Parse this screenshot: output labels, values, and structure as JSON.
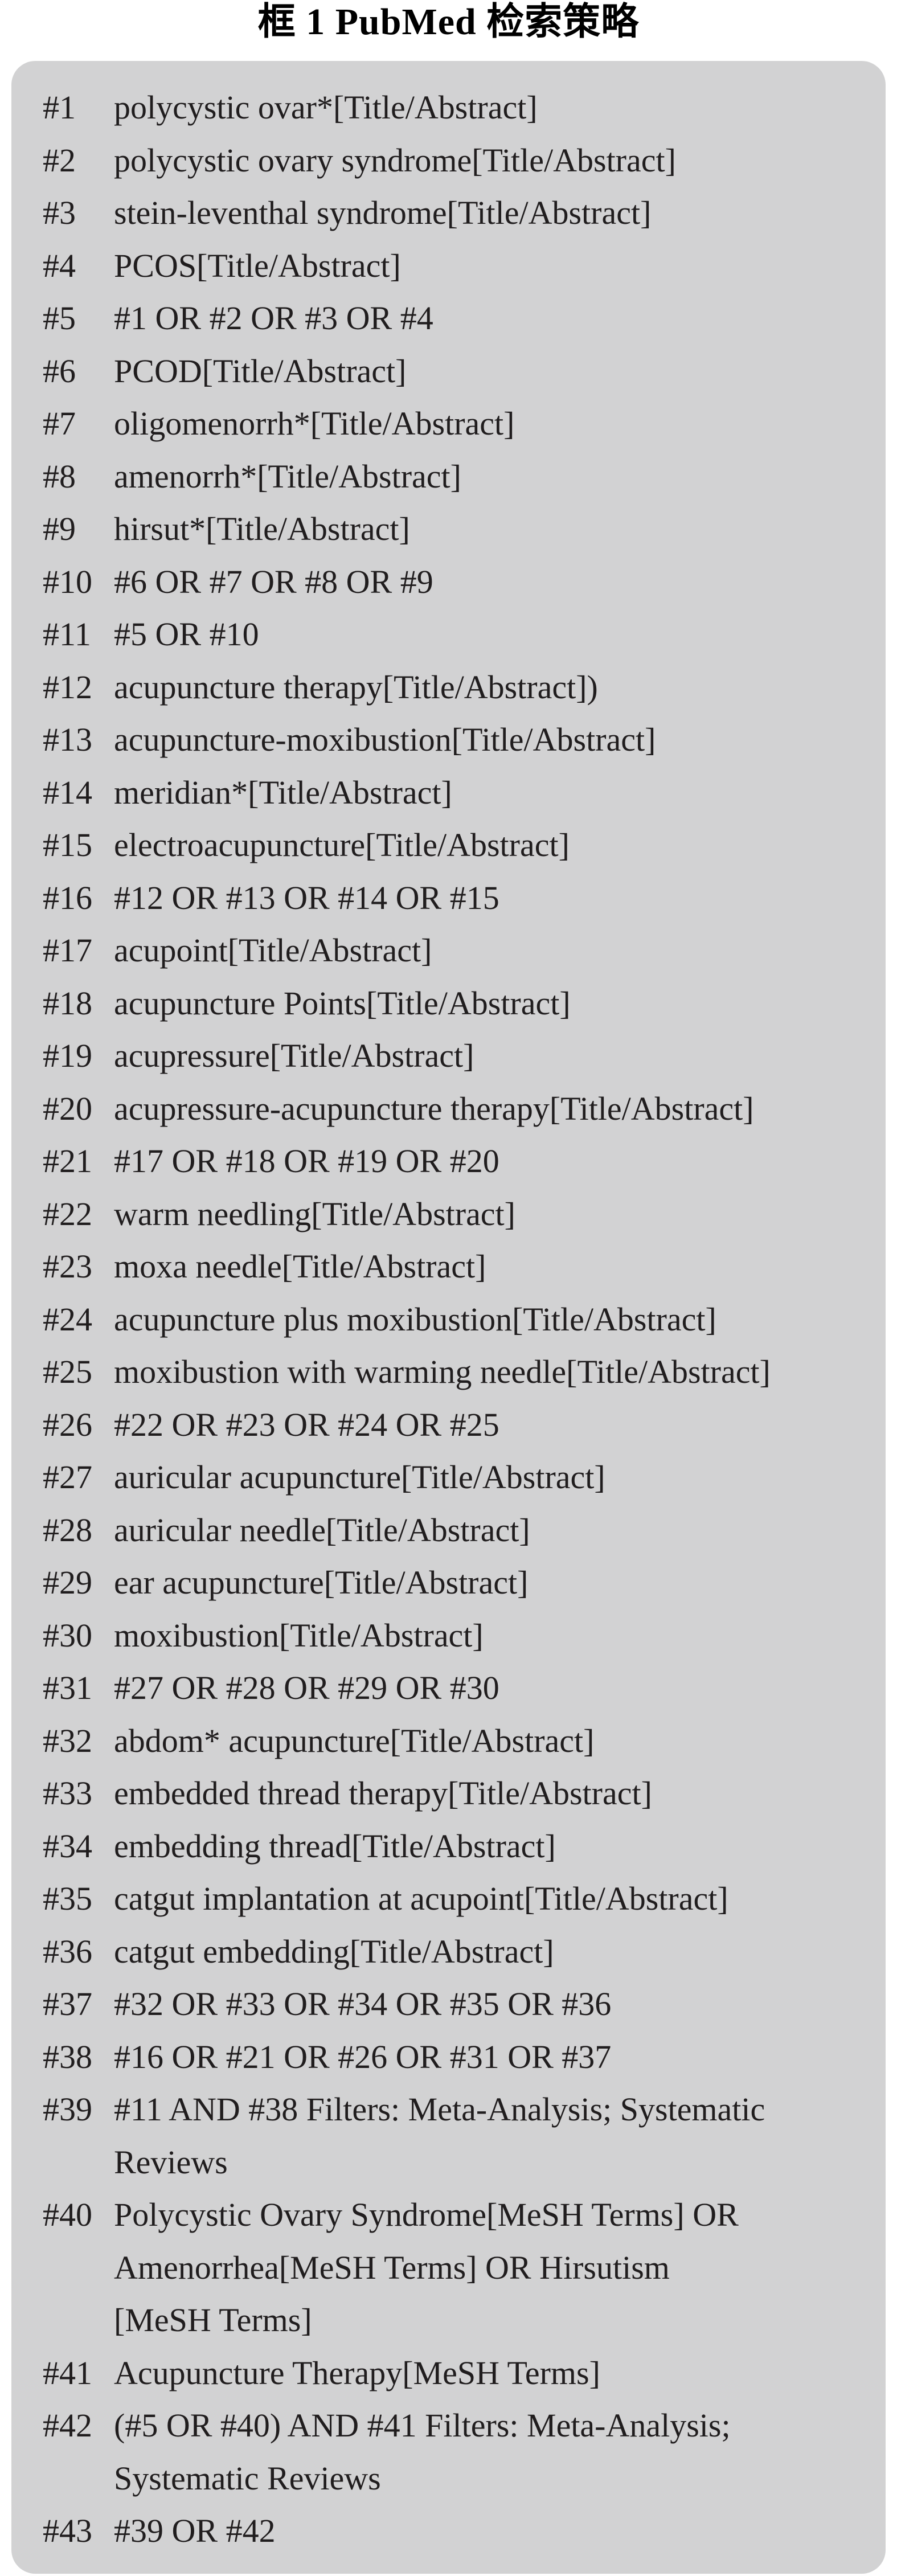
{
  "title": "框 1 PubMed 检索策略",
  "colors": {
    "page_bg": "#ffffff",
    "box_bg": "#d2d2d3",
    "text": "#201d1e",
    "title_text": "#000000"
  },
  "box": {
    "items": [
      {
        "num": "#1",
        "lines": [
          "polycystic ovar*[Title/Abstract]"
        ]
      },
      {
        "num": "#2",
        "lines": [
          "polycystic ovary syndrome[Title/Abstract]"
        ]
      },
      {
        "num": "#3",
        "lines": [
          "stein-leventhal syndrome[Title/Abstract]"
        ]
      },
      {
        "num": "#4",
        "lines": [
          "PCOS[Title/Abstract]"
        ]
      },
      {
        "num": "#5",
        "lines": [
          "#1 OR #2 OR #3 OR #4"
        ]
      },
      {
        "num": "#6",
        "lines": [
          "PCOD[Title/Abstract]"
        ]
      },
      {
        "num": "#7",
        "lines": [
          "oligomenorrh*[Title/Abstract]"
        ]
      },
      {
        "num": "#8",
        "lines": [
          "amenorrh*[Title/Abstract]"
        ]
      },
      {
        "num": "#9",
        "lines": [
          "hirsut*[Title/Abstract]"
        ]
      },
      {
        "num": "#10",
        "lines": [
          "#6 OR #7 OR #8 OR #9"
        ]
      },
      {
        "num": "#11",
        "lines": [
          "#5 OR #10"
        ]
      },
      {
        "num": "#12",
        "lines": [
          "acupuncture therapy[Title/Abstract])"
        ]
      },
      {
        "num": "#13",
        "lines": [
          "acupuncture-moxibustion[Title/Abstract]"
        ]
      },
      {
        "num": "#14",
        "lines": [
          "meridian*[Title/Abstract]"
        ]
      },
      {
        "num": "#15",
        "lines": [
          "electroacupuncture[Title/Abstract]"
        ]
      },
      {
        "num": "#16",
        "lines": [
          "#12 OR #13 OR #14 OR #15"
        ]
      },
      {
        "num": "#17",
        "lines": [
          "acupoint[Title/Abstract]"
        ]
      },
      {
        "num": "#18",
        "lines": [
          "acupuncture Points[Title/Abstract]"
        ]
      },
      {
        "num": "#19",
        "lines": [
          "acupressure[Title/Abstract]"
        ]
      },
      {
        "num": "#20",
        "lines": [
          "acupressure-acupuncture therapy[Title/Abstract]"
        ]
      },
      {
        "num": "#21",
        "lines": [
          "#17 OR #18 OR #19 OR #20"
        ]
      },
      {
        "num": "#22",
        "lines": [
          "warm needling[Title/Abstract]"
        ]
      },
      {
        "num": "#23",
        "lines": [
          "moxa needle[Title/Abstract]"
        ]
      },
      {
        "num": "#24",
        "lines": [
          "acupuncture plus moxibustion[Title/Abstract]"
        ]
      },
      {
        "num": "#25",
        "lines": [
          "moxibustion with warming needle[Title/Abstract]"
        ]
      },
      {
        "num": "#26",
        "lines": [
          "#22 OR #23 OR #24 OR #25"
        ]
      },
      {
        "num": "#27",
        "lines": [
          "auricular acupuncture[Title/Abstract]"
        ]
      },
      {
        "num": "#28",
        "lines": [
          "auricular needle[Title/Abstract]"
        ]
      },
      {
        "num": "#29",
        "lines": [
          "ear acupuncture[Title/Abstract]"
        ]
      },
      {
        "num": "#30",
        "lines": [
          "moxibustion[Title/Abstract]"
        ]
      },
      {
        "num": "#31",
        "lines": [
          "#27 OR #28 OR #29 OR #30"
        ]
      },
      {
        "num": "#32",
        "lines": [
          "abdom* acupuncture[Title/Abstract]"
        ]
      },
      {
        "num": "#33",
        "lines": [
          "embedded thread therapy[Title/Abstract]"
        ]
      },
      {
        "num": "#34",
        "lines": [
          "embedding thread[Title/Abstract]"
        ]
      },
      {
        "num": "#35",
        "lines": [
          "catgut implantation at acupoint[Title/Abstract]"
        ]
      },
      {
        "num": "#36",
        "lines": [
          "catgut embedding[Title/Abstract]"
        ]
      },
      {
        "num": "#37",
        "lines": [
          "#32 OR #33 OR #34 OR #35 OR #36"
        ]
      },
      {
        "num": "#38",
        "lines": [
          "#16 OR #21 OR #26 OR #31 OR #37"
        ]
      },
      {
        "num": "#39",
        "lines": [
          "#11 AND #38 Filters: Meta-Analysis; Systematic",
          "Reviews"
        ]
      },
      {
        "num": "#40",
        "lines": [
          "Polycystic Ovary Syndrome[MeSH Terms] OR",
          "Amenorrhea[MeSH Terms] OR Hirsutism",
          "[MeSH Terms]"
        ]
      },
      {
        "num": "#41",
        "lines": [
          "Acupuncture Therapy[MeSH Terms]"
        ]
      },
      {
        "num": "#42",
        "lines": [
          "(#5 OR #40) AND #41 Filters: Meta-Analysis;",
          "Systematic Reviews"
        ]
      },
      {
        "num": "#43",
        "lines": [
          "#39 OR #42"
        ]
      }
    ]
  }
}
